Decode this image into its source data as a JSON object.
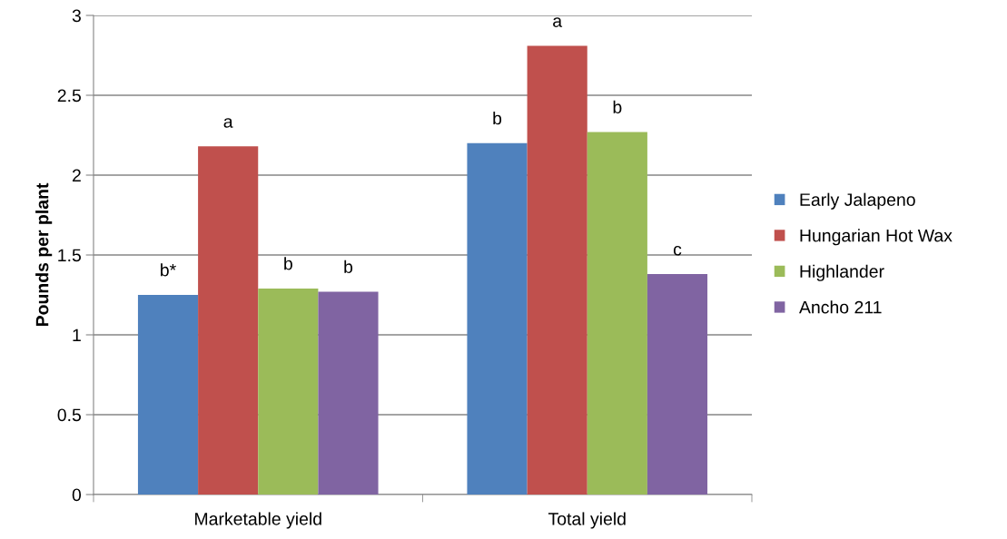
{
  "chart_data": {
    "type": "bar",
    "ylabel": "Pounds per plant",
    "categories": [
      "Marketable yield",
      "Total yield"
    ],
    "series": [
      {
        "name": "Early Jalapeno",
        "color": "#4f81bd",
        "values": [
          1.25,
          2.2
        ],
        "value_labels": [
          "b*",
          "b"
        ]
      },
      {
        "name": "Hungarian Hot Wax",
        "color": "#c0504d",
        "values": [
          2.18,
          2.81
        ],
        "value_labels": [
          "a",
          "a"
        ]
      },
      {
        "name": "Highlander",
        "color": "#9bbb59",
        "values": [
          1.29,
          2.27
        ],
        "value_labels": [
          "b",
          "b"
        ]
      },
      {
        "name": "Ancho 211",
        "color": "#8064a2",
        "values": [
          1.27,
          1.38
        ],
        "value_labels": [
          "b",
          "c"
        ]
      }
    ],
    "ylim": [
      0,
      3
    ],
    "yticks": [
      0,
      0.5,
      1,
      1.5,
      2,
      2.5,
      3
    ],
    "grid": "y",
    "legend": "right"
  }
}
